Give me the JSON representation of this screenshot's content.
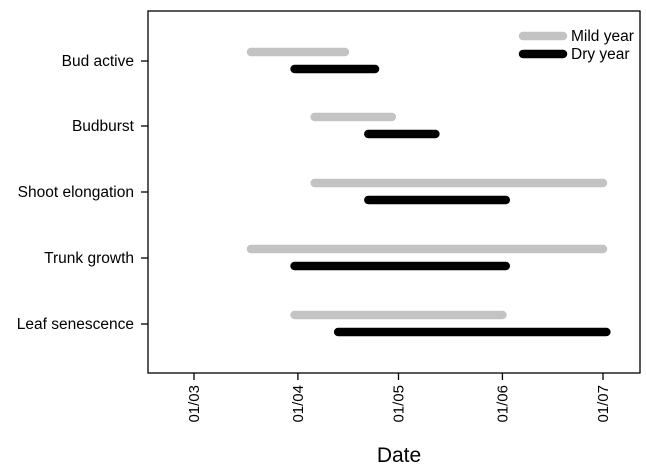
{
  "chart_data": {
    "type": "bar",
    "subtype": "horizontal-range",
    "title": "",
    "xlabel": "Date",
    "ylabel": "",
    "x_axis_type": "date",
    "x_ticks": [
      {
        "date": "2000-03-01",
        "label": "01/03"
      },
      {
        "date": "2000-04-01",
        "label": "01/04"
      },
      {
        "date": "2000-05-01",
        "label": "01/05"
      },
      {
        "date": "2000-06-01",
        "label": "01/06"
      },
      {
        "date": "2000-07-01",
        "label": "01/07"
      }
    ],
    "xlim": [
      "2000-02-15",
      "2000-07-12"
    ],
    "categories": [
      "Bud active",
      "Budburst",
      "Shoot elongation",
      "Trunk growth",
      "Leaf senescence"
    ],
    "series": [
      {
        "name": "Mild year",
        "color": "#c3c3c3",
        "ranges": [
          {
            "start": "2000-03-18",
            "end": "2000-04-15"
          },
          {
            "start": "2000-04-06",
            "end": "2000-04-29"
          },
          {
            "start": "2000-04-06",
            "end": "2000-07-01"
          },
          {
            "start": "2000-03-18",
            "end": "2000-07-01"
          },
          {
            "start": "2000-03-31",
            "end": "2000-06-01"
          }
        ]
      },
      {
        "name": "Dry year",
        "color": "#000000",
        "ranges": [
          {
            "start": "2000-03-31",
            "end": "2000-04-24"
          },
          {
            "start": "2000-04-22",
            "end": "2000-05-12"
          },
          {
            "start": "2000-04-22",
            "end": "2000-06-02"
          },
          {
            "start": "2000-03-31",
            "end": "2000-06-02"
          },
          {
            "start": "2000-04-13",
            "end": "2000-07-02"
          }
        ]
      }
    ],
    "legend_position": "top-right",
    "grid": false
  }
}
